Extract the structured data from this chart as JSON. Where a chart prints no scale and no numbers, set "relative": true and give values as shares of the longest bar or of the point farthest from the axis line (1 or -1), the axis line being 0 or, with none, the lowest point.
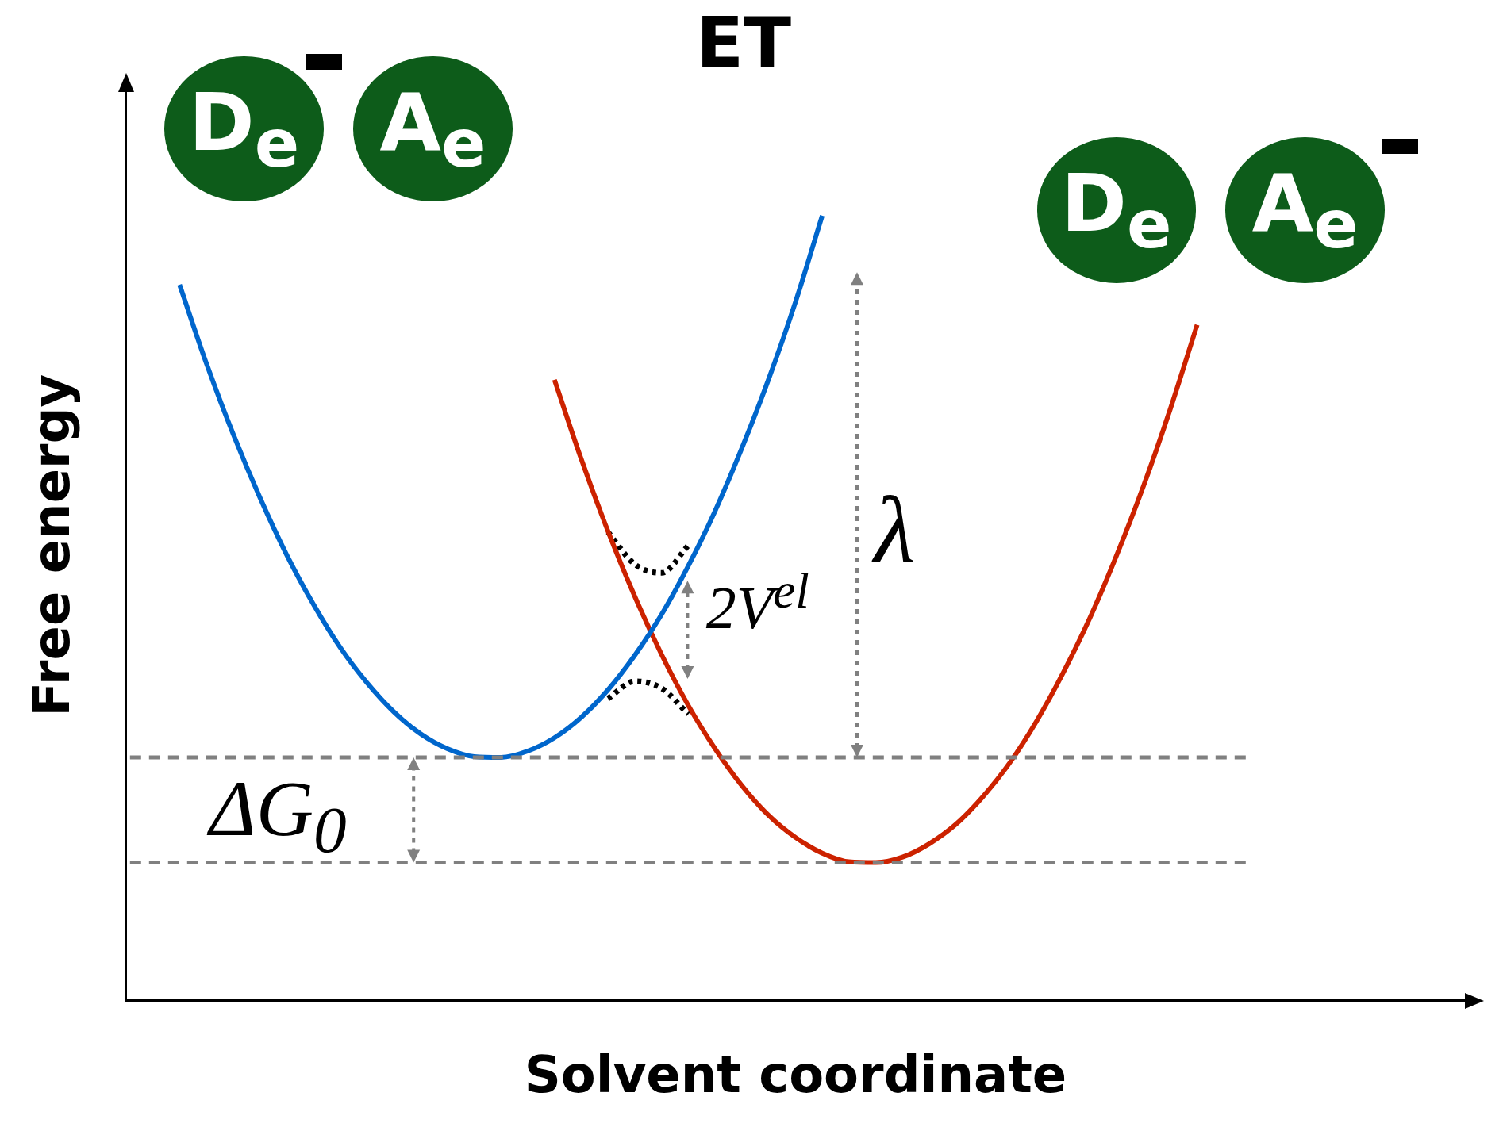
{
  "chart_data": {
    "type": "line",
    "title": "ET",
    "xlabel": "Solvent coordinate",
    "ylabel": "Free energy",
    "relative": true,
    "legend": false,
    "grid": false,
    "marker": "none",
    "categories": [
      null,
      null,
      null,
      null,
      null,
      null,
      null,
      null,
      null,
      null,
      null,
      null,
      null,
      null,
      null,
      null,
      null,
      null,
      null,
      null,
      null,
      null,
      null,
      null,
      null,
      null,
      null,
      null,
      null,
      null,
      null,
      null,
      null,
      null,
      null,
      null,
      null,
      null,
      null,
      null,
      null,
      null,
      null,
      null,
      null,
      null,
      null,
      null,
      null,
      null,
      null
    ],
    "series": [
      {
        "type": "line",
        "color": "#0066cc",
        "line_style": "solid",
        "values": [
          null,
          null,
          0.912,
          0.812,
          0.722,
          0.641,
          0.568,
          0.505,
          0.45,
          0.405,
          0.368,
          0.34,
          0.321,
          0.311,
          0.31,
          0.318,
          0.335,
          0.361,
          0.396,
          0.44,
          0.492,
          0.554,
          0.624,
          0.704,
          0.792,
          0.89,
          1,
          null,
          null,
          null,
          null,
          null,
          null,
          null,
          null,
          null,
          null,
          null,
          null,
          null,
          null,
          null,
          null,
          null,
          null,
          null,
          null,
          null,
          null,
          null,
          null
        ]
      },
      {
        "type": "line",
        "color": "#cc2200",
        "line_style": "solid",
        "values": [
          null,
          null,
          null,
          null,
          null,
          null,
          null,
          null,
          null,
          null,
          null,
          null,
          null,
          null,
          null,
          null,
          0.791,
          0.69,
          0.598,
          0.515,
          0.441,
          0.376,
          0.321,
          0.274,
          0.236,
          0.208,
          0.188,
          0.177,
          0.176,
          0.183,
          0.2,
          0.225,
          0.26,
          0.303,
          0.356,
          0.418,
          0.488,
          0.568,
          0.656,
          0.754,
          0.861,
          null,
          null,
          null,
          null,
          null,
          null,
          null,
          null,
          null,
          null
        ]
      },
      {
        "type": "line",
        "color": "#000000",
        "line_style": "dotted",
        "values": [
          null,
          null,
          null,
          null,
          null,
          null,
          null,
          null,
          null,
          null,
          null,
          null,
          null,
          null,
          null,
          null,
          null,
          null,
          0.597,
          0.556,
          0.545,
          0.58,
          null,
          null,
          null,
          null,
          null,
          null,
          null,
          null,
          null,
          null,
          null,
          null,
          null,
          null,
          null,
          null,
          null,
          null,
          null,
          null,
          null,
          null,
          null,
          null,
          null,
          null,
          null,
          null,
          null
        ]
      },
      {
        "type": "line",
        "color": "#000000",
        "line_style": "dotted",
        "values": [
          null,
          null,
          null,
          null,
          null,
          null,
          null,
          null,
          null,
          null,
          null,
          null,
          null,
          null,
          null,
          null,
          null,
          null,
          0.385,
          0.407,
          0.398,
          0.365,
          null,
          null,
          null,
          null,
          null,
          null,
          null,
          null,
          null,
          null,
          null,
          null,
          null,
          null,
          null,
          null,
          null,
          null,
          null,
          null,
          null,
          null,
          null,
          null,
          null,
          null,
          null,
          null,
          null
        ]
      }
    ],
    "ref_lines": [
      {
        "axis": "y",
        "value": 0.31,
        "color": "#808080",
        "line_style": "dashed"
      },
      {
        "axis": "y",
        "value": 0.176,
        "color": "#808080",
        "line_style": "dashed"
      }
    ],
    "annotations": [
      "D$_{e}$",
      "A$_{e}$",
      "D$_{e}$",
      "A$_{e}$",
      "ΔG$_{0}$",
      "λ",
      "2V$^{el}$"
    ]
  }
}
